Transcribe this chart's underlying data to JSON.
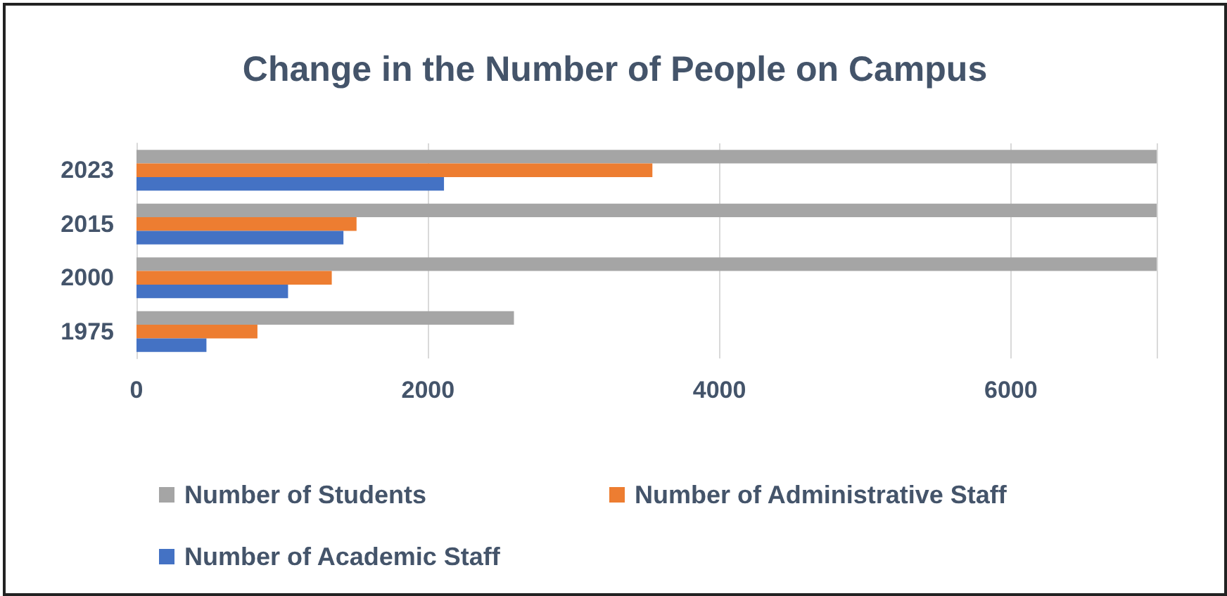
{
  "chart_data": {
    "type": "bar",
    "orientation": "horizontal",
    "title": "Change in the Number of People on Campus",
    "categories": [
      "2023",
      "2015",
      "2000",
      "1975"
    ],
    "series": [
      {
        "name": "Number of Students",
        "color": "#a5a5a5",
        "values": [
          7000,
          7000,
          7000,
          2590
        ]
      },
      {
        "name": "Number of Administrative Staff",
        "color": "#ed7d31",
        "values": [
          3540,
          1510,
          1340,
          830
        ]
      },
      {
        "name": "Number of Academic Staff",
        "color": "#4472c4",
        "values": [
          2110,
          1420,
          1040,
          480
        ]
      }
    ],
    "xlim": [
      0,
      7000
    ],
    "xticks": [
      0,
      2000,
      4000,
      6000
    ],
    "grid": "x",
    "legend": "bottom"
  }
}
